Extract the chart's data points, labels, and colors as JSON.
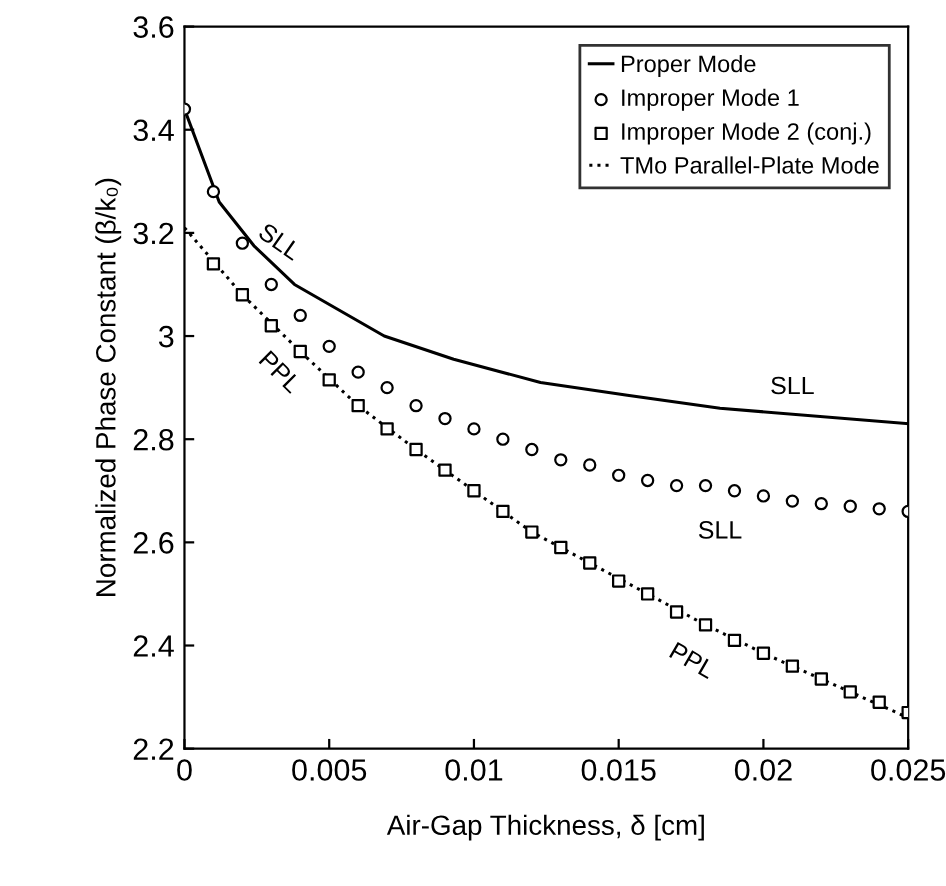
{
  "chart_data": {
    "type": "line",
    "xlabel": "Air-Gap Thickness, δ [cm]",
    "ylabel": "Normalized Phase Constant (β/k₀)",
    "xlim": [
      0,
      0.025
    ],
    "ylim": [
      2.2,
      3.6
    ],
    "xticks": [
      0,
      0.005,
      0.01,
      0.015,
      0.02,
      0.025
    ],
    "yticks": [
      2.2,
      2.4,
      2.6,
      2.8,
      3,
      3.2,
      3.4,
      3.6
    ],
    "grid": false,
    "legend": "top right",
    "series": [
      {
        "name": "Proper Mode",
        "color": "#000000",
        "line_style": "solid",
        "marker": "none",
        "x": [
          0,
          0.0012,
          0.0024,
          0.0038,
          0.0069,
          0.0093,
          0.0123,
          0.0153,
          0.0185,
          0.025
        ],
        "values": [
          3.44,
          3.26,
          3.175,
          3.1,
          3.0,
          2.955,
          2.91,
          2.885,
          2.86,
          2.83
        ]
      },
      {
        "name": "Improper Mode 1",
        "type": "scatter",
        "color": "#000000",
        "marker": "circle",
        "x": [
          0,
          0.001,
          0.002,
          0.003,
          0.004,
          0.005,
          0.006,
          0.007,
          0.008,
          0.009,
          0.01,
          0.011,
          0.012,
          0.013,
          0.014,
          0.015,
          0.016,
          0.017,
          0.018,
          0.019,
          0.02,
          0.021,
          0.022,
          0.023,
          0.024,
          0.025
        ],
        "values": [
          3.44,
          3.28,
          3.18,
          3.1,
          3.04,
          2.98,
          2.93,
          2.9,
          2.865,
          2.84,
          2.82,
          2.8,
          2.78,
          2.76,
          2.75,
          2.73,
          2.72,
          2.71,
          2.71,
          2.7,
          2.69,
          2.68,
          2.675,
          2.67,
          2.665,
          2.66
        ]
      },
      {
        "name": "Improper Mode 2 (conj.)",
        "type": "scatter",
        "color": "#000000",
        "marker": "square",
        "x": [
          0.001,
          0.002,
          0.003,
          0.004,
          0.005,
          0.006,
          0.007,
          0.008,
          0.009,
          0.01,
          0.011,
          0.012,
          0.013,
          0.014,
          0.015,
          0.016,
          0.017,
          0.018,
          0.019,
          0.02,
          0.021,
          0.022,
          0.023,
          0.024,
          0.025
        ],
        "values": [
          3.14,
          3.08,
          3.02,
          2.97,
          2.915,
          2.865,
          2.82,
          2.78,
          2.74,
          2.7,
          2.66,
          2.62,
          2.59,
          2.56,
          2.525,
          2.5,
          2.465,
          2.44,
          2.41,
          2.385,
          2.36,
          2.335,
          2.31,
          2.29,
          2.27
        ]
      },
      {
        "name": "TMo Parallel-Plate Mode",
        "color": "#000000",
        "line_style": "dotted",
        "marker": "none",
        "x": [
          0,
          0.002,
          0.004,
          0.006,
          0.008,
          0.01,
          0.012,
          0.014,
          0.016,
          0.018,
          0.02,
          0.022,
          0.025
        ],
        "values": [
          3.21,
          3.08,
          2.97,
          2.865,
          2.78,
          2.7,
          2.62,
          2.56,
          2.5,
          2.44,
          2.385,
          2.335,
          2.26
        ]
      }
    ],
    "annotations": [
      "SLL",
      "SLL",
      "SLL",
      "PPL",
      "PPL"
    ]
  }
}
